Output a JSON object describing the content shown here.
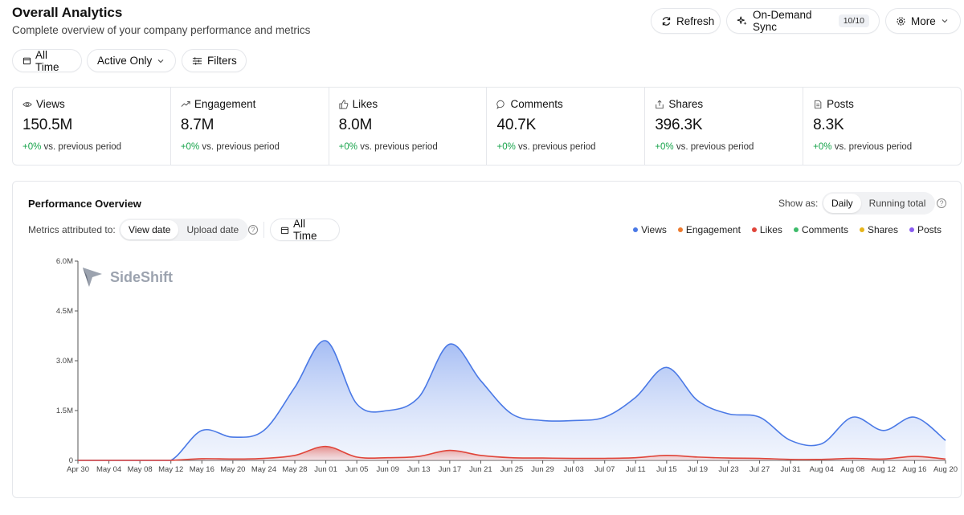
{
  "header": {
    "title": "Overall Analytics",
    "subtitle": "Complete overview of your company performance and metrics"
  },
  "toolbar": {
    "refresh_label": "Refresh",
    "sync_label": "On-Demand Sync",
    "sync_badge": "10/10",
    "more_label": "More"
  },
  "filters": {
    "time_label": "All Time",
    "status_label": "Active Only",
    "filters_label": "Filters"
  },
  "stats": [
    {
      "label": "Views",
      "value": "150.5M",
      "change": "+0%",
      "suffix": "vs. previous period"
    },
    {
      "label": "Engagement",
      "value": "8.7M",
      "change": "+0%",
      "suffix": "vs. previous period"
    },
    {
      "label": "Likes",
      "value": "8.0M",
      "change": "+0%",
      "suffix": "vs. previous period"
    },
    {
      "label": "Comments",
      "value": "40.7K",
      "change": "+0%",
      "suffix": "vs. previous period"
    },
    {
      "label": "Shares",
      "value": "396.3K",
      "change": "+0%",
      "suffix": "vs. previous period"
    },
    {
      "label": "Posts",
      "value": "8.3K",
      "change": "+0%",
      "suffix": "vs. previous period"
    }
  ],
  "panel": {
    "title": "Performance Overview",
    "show_as_label": "Show as:",
    "show_as_options": [
      "Daily",
      "Running total"
    ],
    "show_as_selected": "Daily",
    "metrics_label": "Metrics attributed to:",
    "attr_options": [
      "View date",
      "Upload date"
    ],
    "attr_selected": "View date",
    "time_label": "All Time",
    "watermark": "SideShift"
  },
  "colors": {
    "views": "#4a79e6",
    "engagement": "#ec7a2e",
    "likes": "#e0453a",
    "comments": "#3dbb6a",
    "shares": "#e6b41a",
    "posts": "#8a5cf0"
  },
  "chart_data": {
    "type": "area",
    "x": [
      "Apr 30",
      "May 04",
      "May 08",
      "May 12",
      "May 16",
      "May 20",
      "May 24",
      "May 28",
      "Jun 01",
      "Jun 05",
      "Jun 09",
      "Jun 13",
      "Jun 17",
      "Jun 21",
      "Jun 25",
      "Jun 29",
      "Jul 03",
      "Jul 07",
      "Jul 11",
      "Jul 15",
      "Jul 19",
      "Jul 23",
      "Jul 27",
      "Jul 31",
      "Aug 04",
      "Aug 08",
      "Aug 12",
      "Aug 16",
      "Aug 20"
    ],
    "yticks": [
      "0",
      "1.5M",
      "3.0M",
      "4.5M",
      "6.0M"
    ],
    "ylim": [
      0,
      6000000
    ],
    "legend": [
      "Views",
      "Engagement",
      "Likes",
      "Comments",
      "Shares",
      "Posts"
    ],
    "series": [
      {
        "name": "Views",
        "values": [
          0,
          0,
          0,
          0,
          900000,
          700000,
          900000,
          2200000,
          3600000,
          1700000,
          1500000,
          1900000,
          3500000,
          2400000,
          1400000,
          1200000,
          1200000,
          1300000,
          1900000,
          2800000,
          1800000,
          1400000,
          1300000,
          600000,
          500000,
          1300000,
          900000,
          1300000,
          600000
        ]
      },
      {
        "name": "Likes",
        "values": [
          0,
          0,
          0,
          0,
          50000,
          40000,
          60000,
          150000,
          420000,
          100000,
          80000,
          120000,
          300000,
          150000,
          80000,
          70000,
          60000,
          60000,
          80000,
          150000,
          100000,
          70000,
          60000,
          30000,
          30000,
          60000,
          40000,
          120000,
          40000
        ]
      }
    ]
  }
}
